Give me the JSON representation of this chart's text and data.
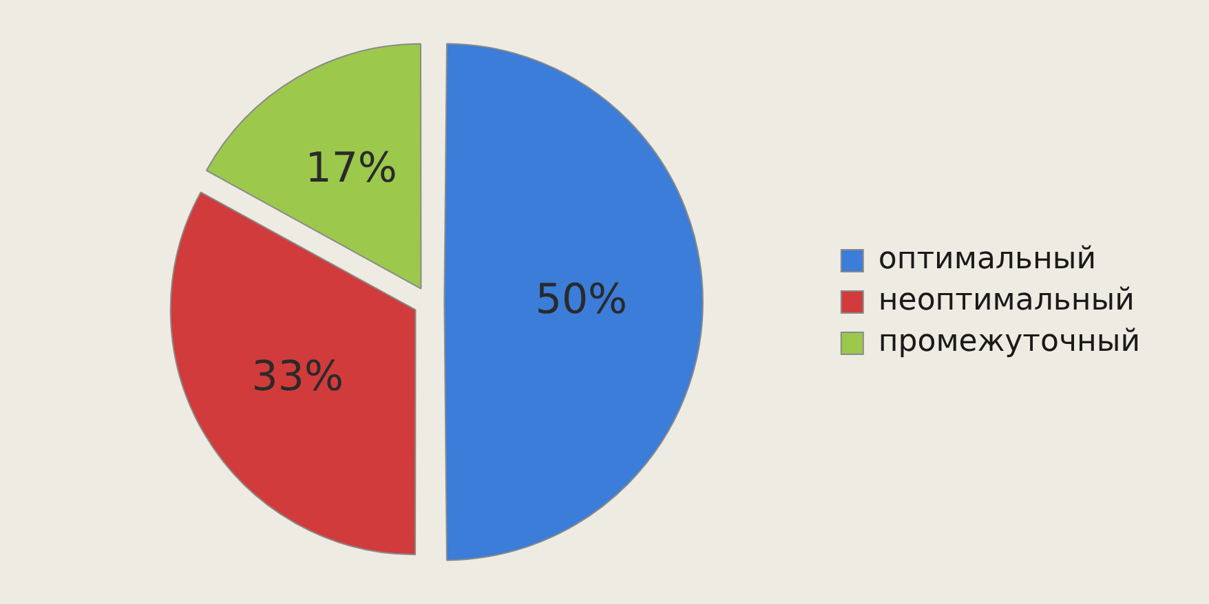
{
  "chart_data": {
    "type": "pie",
    "categories": [
      "оптимальный",
      "неоптимальный",
      "промежуточный"
    ],
    "values": [
      50,
      33,
      17
    ],
    "colors": [
      "#3b7dd8",
      "#d23b3b",
      "#9cc84b"
    ],
    "value_labels": [
      "50%",
      "33%",
      "17%"
    ],
    "legend": "right"
  }
}
